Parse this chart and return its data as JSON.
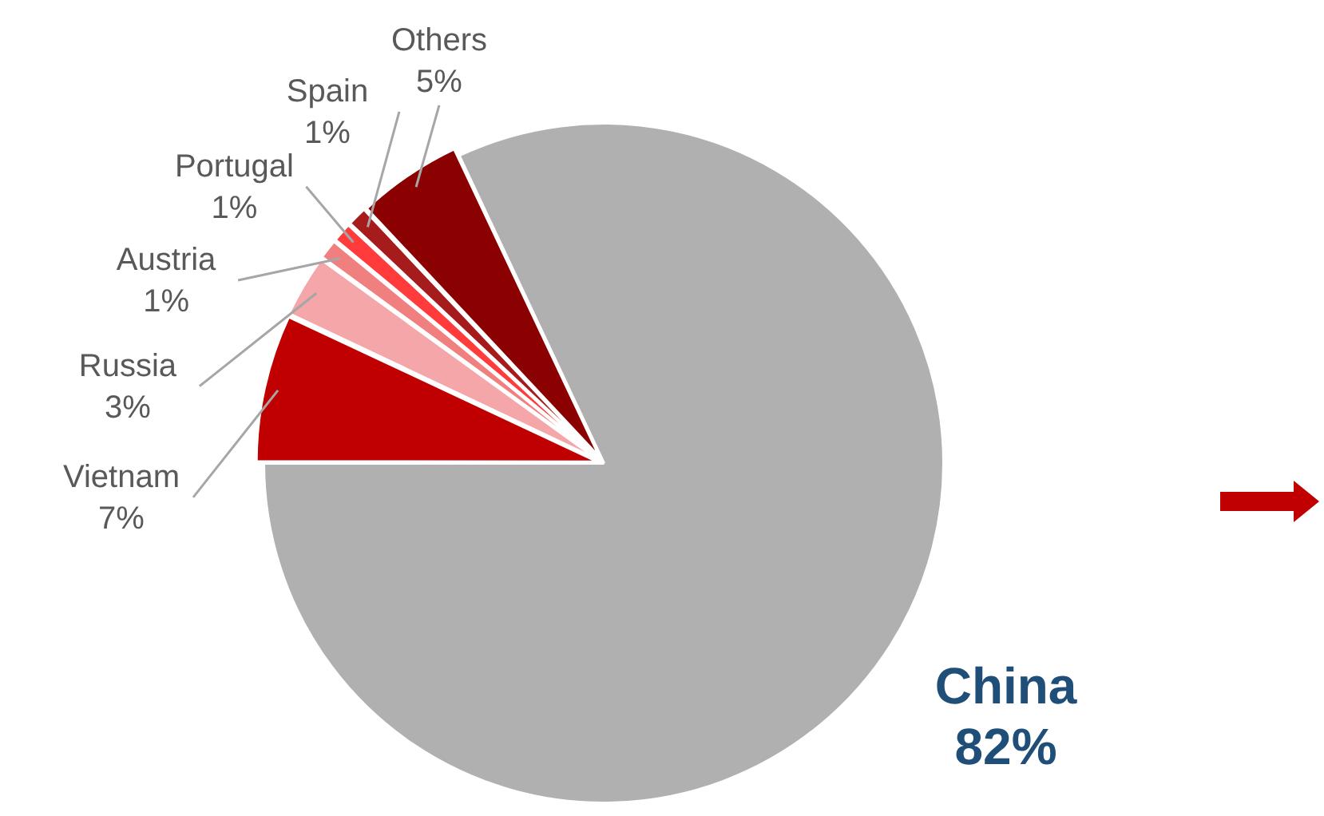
{
  "chart_data": {
    "type": "pie",
    "categories": [
      "China",
      "Vietnam",
      "Russia",
      "Austria",
      "Portugal",
      "Spain",
      "Others"
    ],
    "values": [
      82,
      7,
      3,
      1,
      1,
      1,
      5
    ],
    "colors": [
      "#b0b0b0",
      "#c00000",
      "#f4a6a8",
      "#f08080",
      "#ff3b3b",
      "#a61c1c",
      "#8b0000"
    ],
    "value_labels": [
      "82%",
      "7%",
      "3%",
      "1%",
      "1%",
      "1%",
      "5%"
    ],
    "legend": false
  }
}
